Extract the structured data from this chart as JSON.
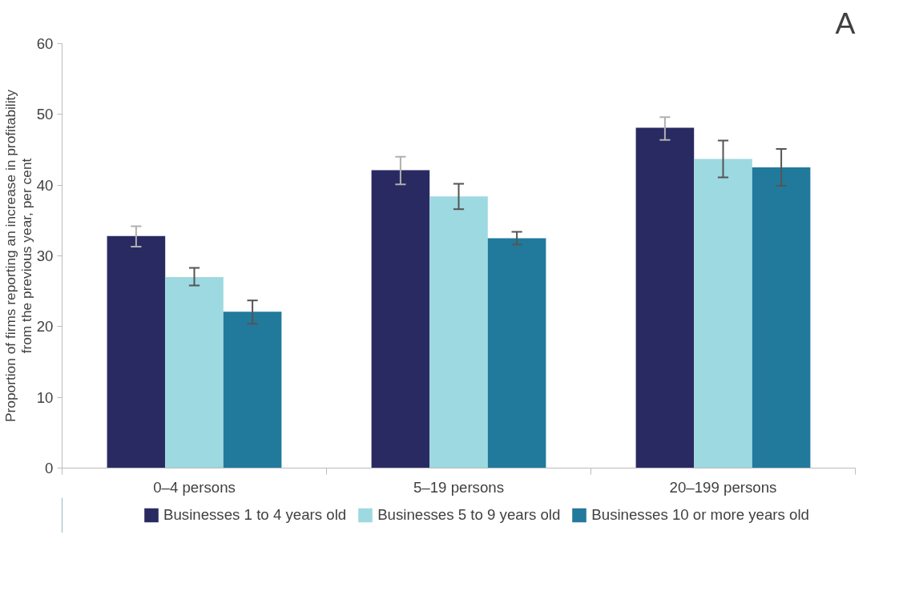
{
  "chart_data": {
    "type": "bar",
    "ylabel": "Proportion of firms reporting an increase in profitability\nfrom the previous year, per cent",
    "annotations": [
      "A"
    ],
    "categories": [
      "0–4 persons",
      "5–19 persons",
      "20–199 persons"
    ],
    "series": [
      {
        "name": "Businesses 1 to 4 years old",
        "color": "#2a2a62",
        "values": [
          32.8,
          42.1,
          48.1
        ],
        "errors": [
          [
            31.3,
            34.2
          ],
          [
            40.1,
            44.0
          ],
          [
            46.4,
            49.6
          ]
        ]
      },
      {
        "name": "Businesses 5 to 9 years old",
        "color": "#9dd9e0",
        "values": [
          27.0,
          38.4,
          43.7
        ],
        "errors": [
          [
            25.8,
            28.3
          ],
          [
            36.6,
            40.2
          ],
          [
            41.1,
            46.3
          ]
        ]
      },
      {
        "name": "Businesses 10 or more years old",
        "color": "#217a9c",
        "values": [
          22.1,
          32.5,
          42.5
        ],
        "errors": [
          [
            20.4,
            23.7
          ],
          [
            31.6,
            33.4
          ],
          [
            39.9,
            45.1
          ]
        ]
      }
    ],
    "ylim": [
      0,
      60
    ],
    "yticks": [
      0,
      10,
      20,
      30,
      40,
      50,
      60
    ],
    "grid": false,
    "legend": "bottom"
  }
}
